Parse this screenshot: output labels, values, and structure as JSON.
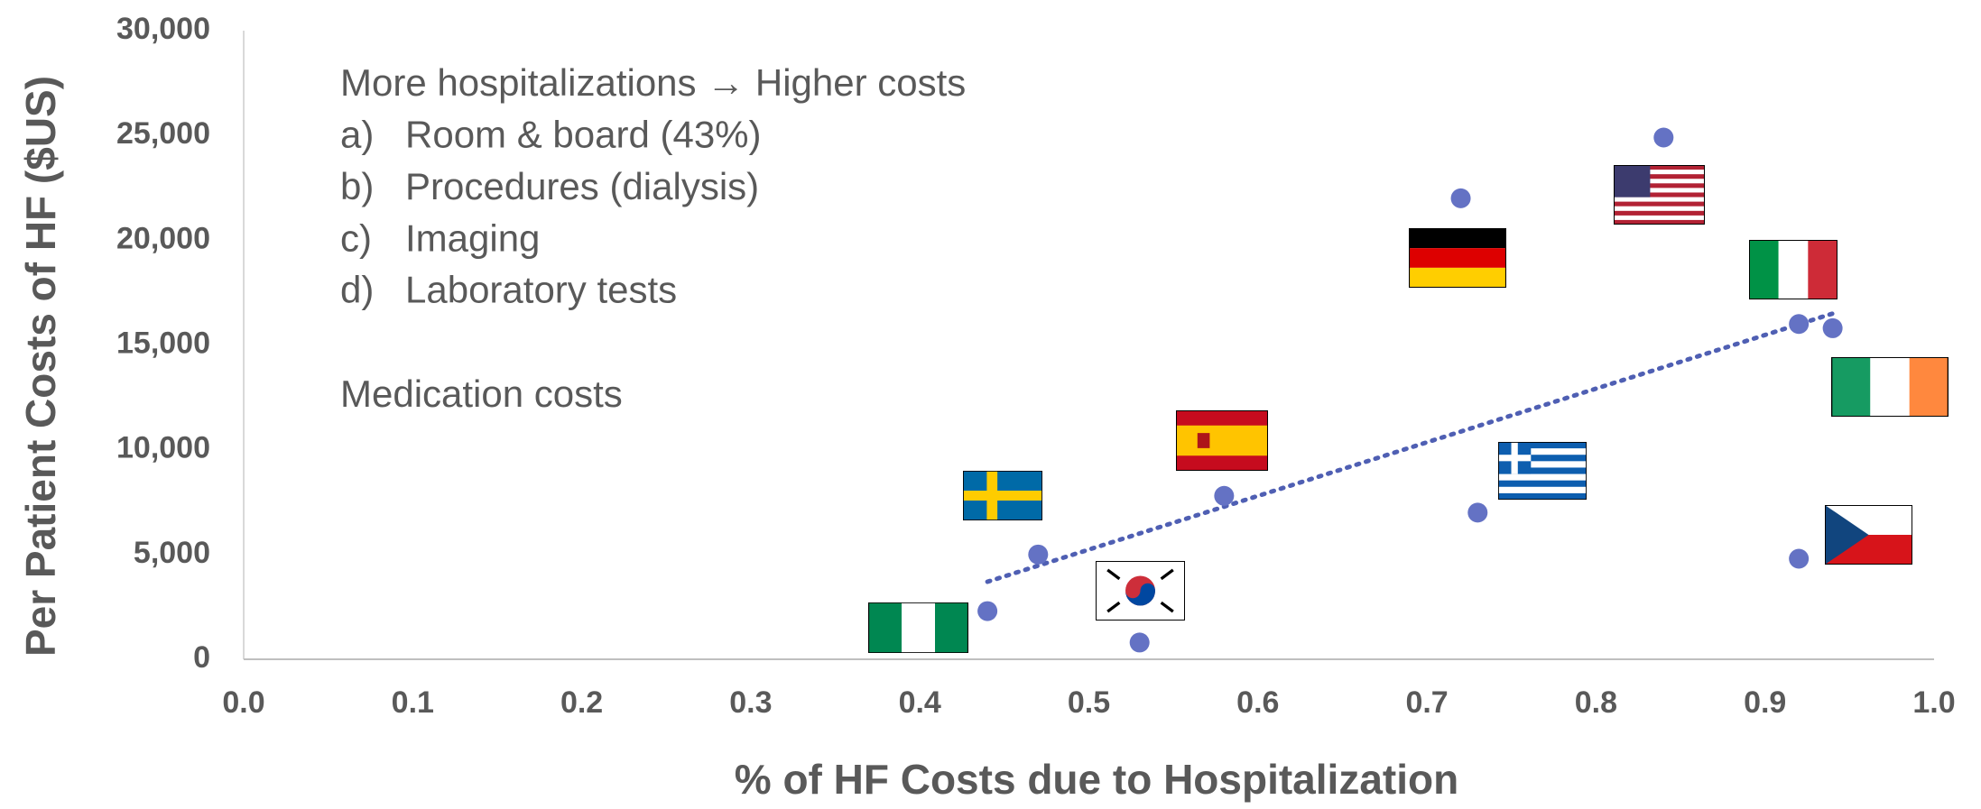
{
  "chart_data": {
    "type": "scatter",
    "x_label": "% of HF Costs due to Hospitalization",
    "y_label": "Per Patient Costs of HF ($US)",
    "x": [
      0.44,
      0.47,
      0.53,
      0.58,
      0.72,
      0.73,
      0.84,
      0.92,
      0.94,
      0.92
    ],
    "series": [
      {
        "color": "#6472c4",
        "values": [
          2300,
          5000,
          800,
          7800,
          22000,
          7000,
          24900,
          16000,
          15800,
          4800
        ]
      }
    ],
    "trendline": {
      "x": [
        0.44,
        0.94
      ],
      "values": [
        3700,
        16500
      ],
      "color": "#4f5fb3"
    },
    "xlim": [
      0,
      1
    ],
    "xticks": [
      {
        "value": 0,
        "label": "0.0"
      },
      0.1,
      0.2,
      0.3,
      0.4,
      0.5,
      0.6,
      0.7,
      0.8,
      0.9,
      {
        "value": 1,
        "label": "1.0"
      }
    ],
    "ylim": [
      0,
      30000
    ],
    "yticks": [
      0,
      {
        "value": 5000,
        "label": "5,000"
      },
      {
        "value": 10000,
        "label": "10,000"
      },
      {
        "value": 15000,
        "label": "15,000"
      },
      {
        "value": 20000,
        "label": "20,000"
      },
      {
        "value": 25000,
        "label": "25,000"
      },
      {
        "value": 30000,
        "label": "30,000"
      }
    ],
    "annotation": {
      "heading": "More hospitalizations → Higher costs",
      "items": [
        {
          "marker": "a)",
          "text": "Room & board (43%)"
        },
        {
          "marker": "b)",
          "text": "Procedures (dialysis)"
        },
        {
          "marker": "c)",
          "text": "Imaging"
        },
        {
          "marker": "d)",
          "text": "Laboratory tests"
        }
      ],
      "footer": "Medication costs"
    }
  }
}
